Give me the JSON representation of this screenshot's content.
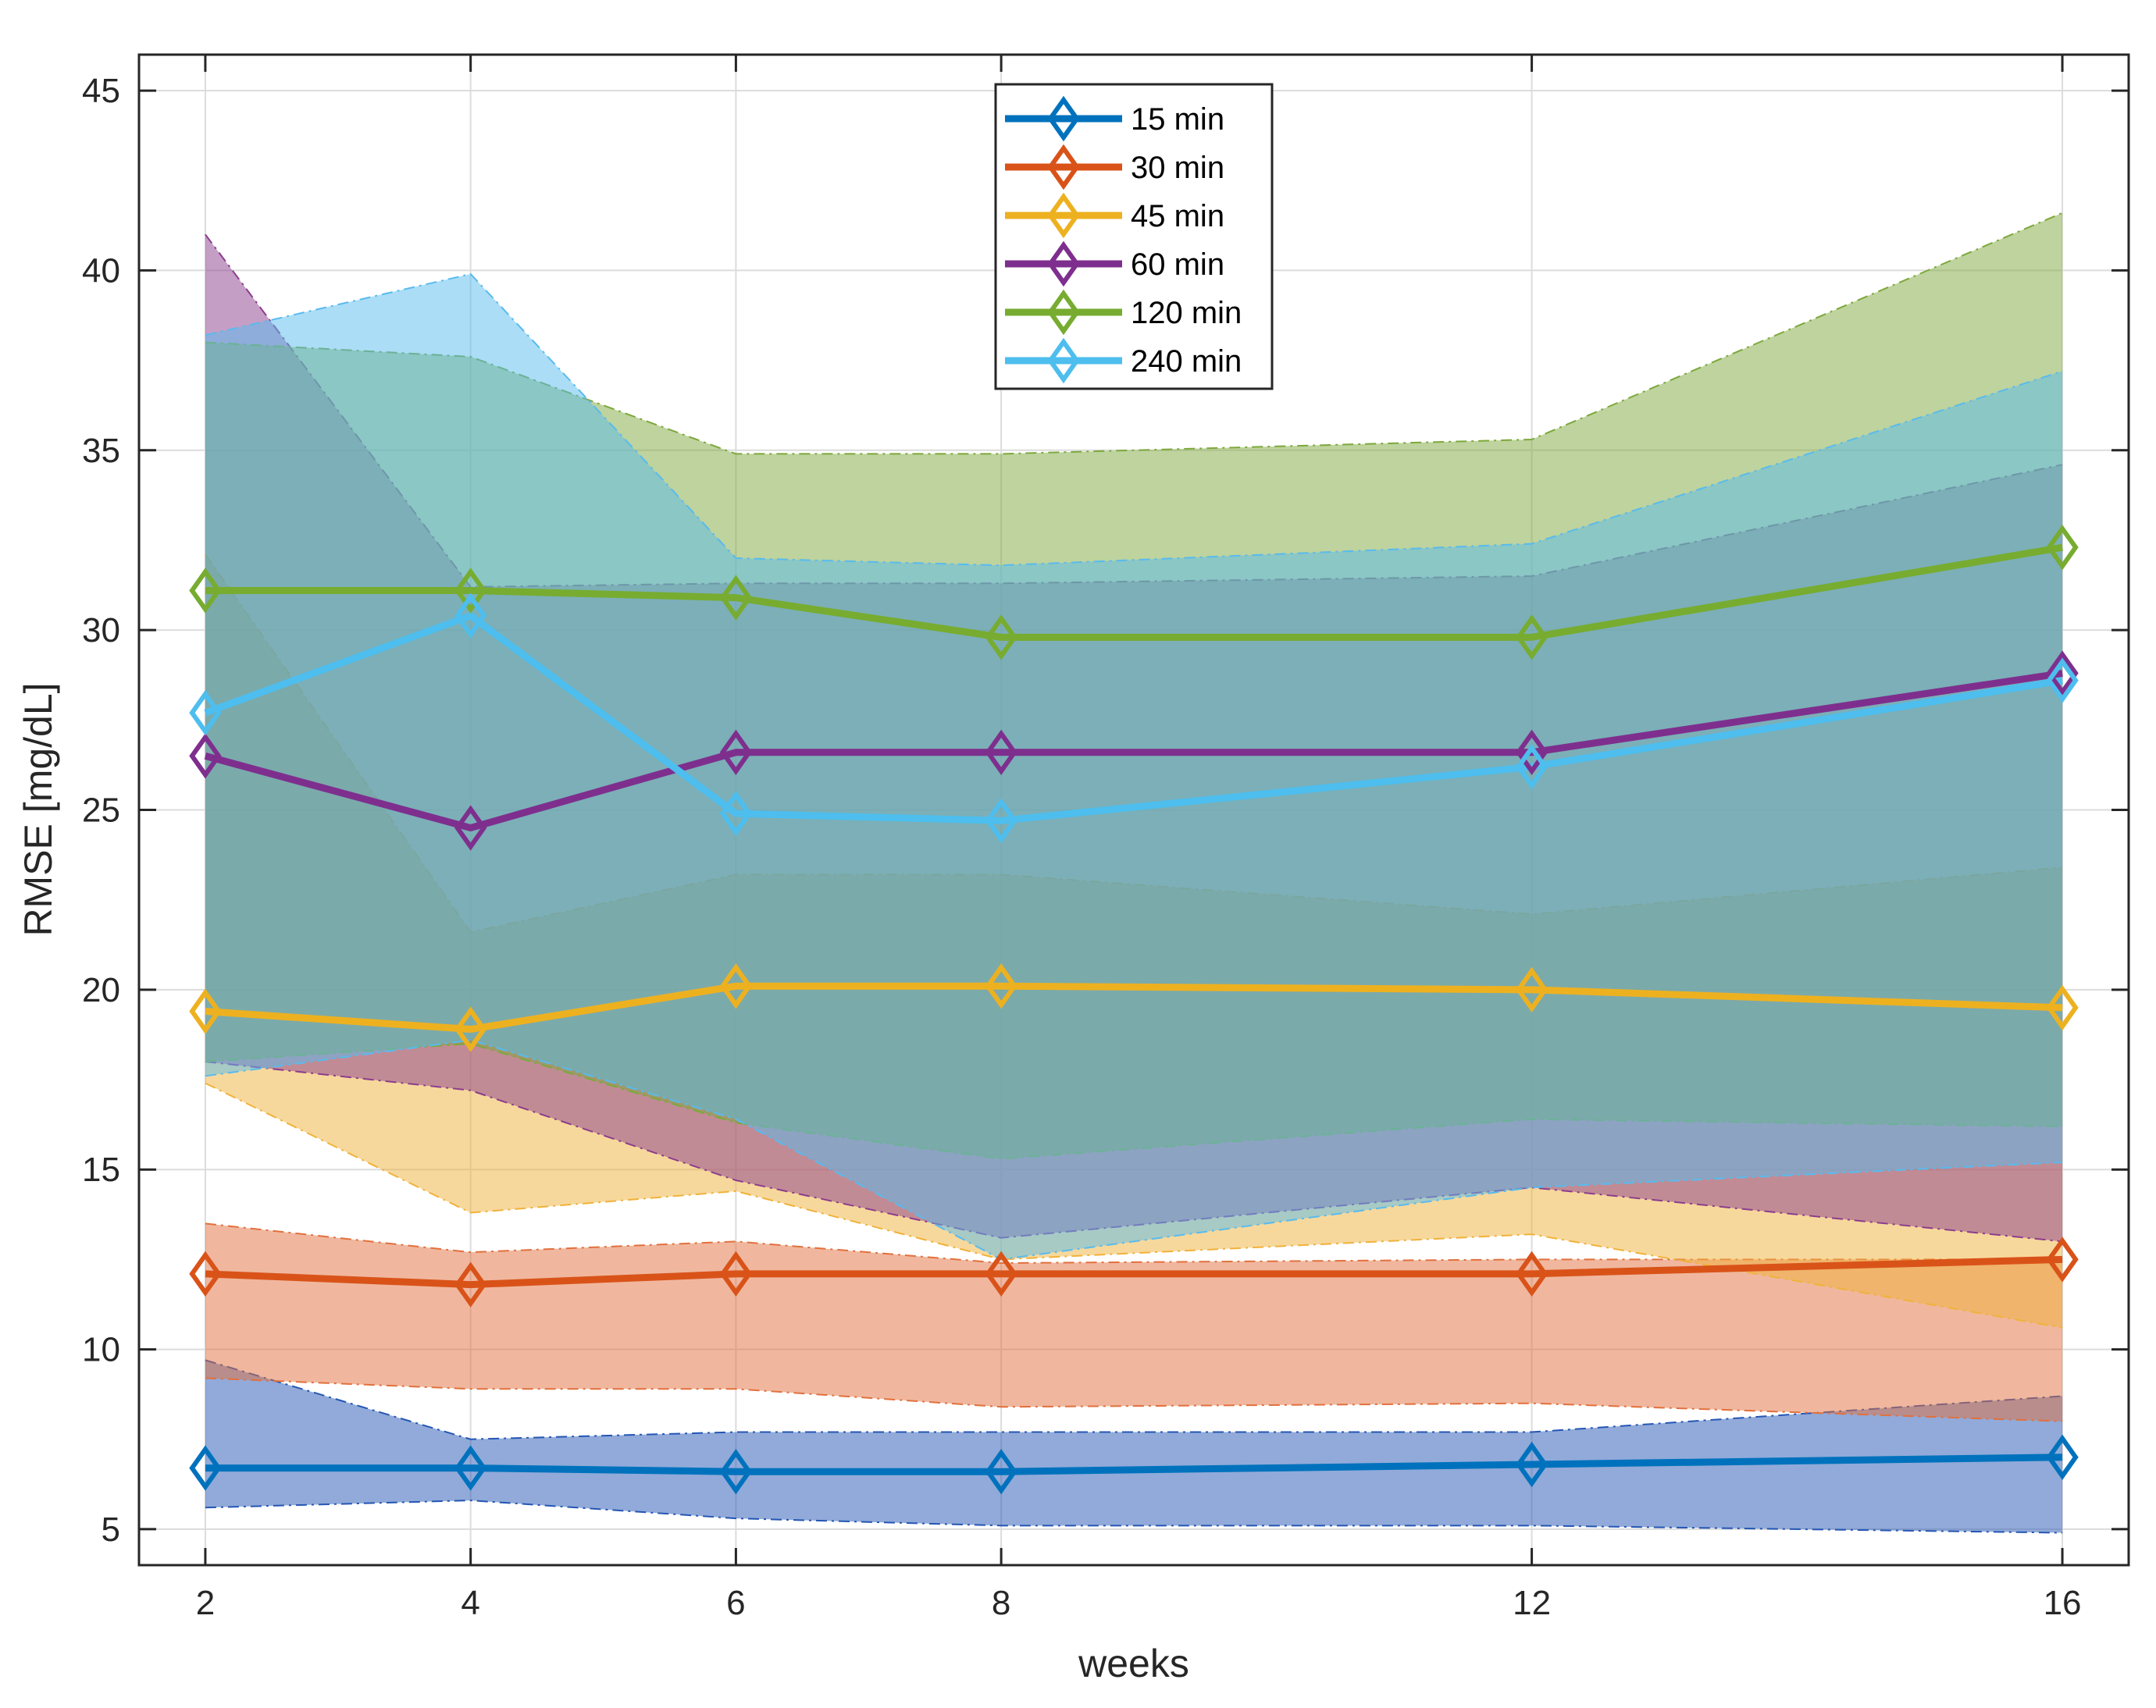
{
  "chart_data": {
    "type": "line",
    "title": "",
    "xlabel": "weeks",
    "ylabel": "RMSE [mg/dL]",
    "x": [
      2,
      4,
      6,
      8,
      12,
      16
    ],
    "xlim": [
      1.5,
      16.5
    ],
    "ylim": [
      4,
      46
    ],
    "x_ticks": [
      2,
      4,
      6,
      8,
      12,
      16
    ],
    "y_ticks": [
      5,
      10,
      15,
      20,
      25,
      30,
      35,
      40,
      45
    ],
    "grid": true,
    "legend_position": "top-center",
    "series": [
      {
        "name": "15 min",
        "color": "#0072BD",
        "band_color": "#2456B4",
        "values": [
          6.7,
          6.7,
          6.6,
          6.6,
          6.8,
          7.0
        ],
        "lower": [
          5.6,
          5.8,
          5.3,
          5.1,
          5.1,
          4.9
        ],
        "upper": [
          9.7,
          7.5,
          7.7,
          7.7,
          7.7,
          8.7
        ]
      },
      {
        "name": "30 min",
        "color": "#D95319",
        "band_color": "#E2703D",
        "values": [
          12.1,
          11.8,
          12.1,
          12.1,
          12.1,
          12.5
        ],
        "lower": [
          9.2,
          8.9,
          8.9,
          8.4,
          8.5,
          8.0
        ],
        "upper": [
          13.5,
          12.7,
          13.0,
          12.4,
          12.5,
          12.5
        ]
      },
      {
        "name": "45 min",
        "color": "#EDB120",
        "band_color": "#F0B23A",
        "values": [
          19.4,
          18.9,
          20.1,
          20.1,
          20.0,
          19.5
        ],
        "lower": [
          17.4,
          13.8,
          14.4,
          12.5,
          13.2,
          10.6
        ],
        "upper": [
          32.1,
          21.6,
          23.2,
          23.2,
          22.1,
          23.4
        ]
      },
      {
        "name": "60 min",
        "color": "#7E2F8E",
        "band_color": "#8C3D8E",
        "values": [
          26.5,
          24.5,
          26.6,
          26.6,
          26.6,
          28.8
        ],
        "lower": [
          18.0,
          17.2,
          14.7,
          13.1,
          14.5,
          13.0
        ],
        "upper": [
          41.0,
          31.2,
          31.3,
          31.3,
          31.5,
          34.6
        ]
      },
      {
        "name": "120 min",
        "color": "#77AC30",
        "band_color": "#7DA83C",
        "values": [
          31.1,
          31.1,
          30.9,
          29.8,
          29.8,
          32.3
        ],
        "lower": [
          18.0,
          18.5,
          16.3,
          15.3,
          16.4,
          16.2
        ],
        "upper": [
          38.0,
          37.6,
          34.9,
          34.9,
          35.3,
          41.6
        ]
      },
      {
        "name": "240 min",
        "color": "#4DBEEE",
        "band_color": "#58BBEE",
        "values": [
          27.7,
          30.4,
          24.9,
          24.7,
          26.2,
          28.6
        ],
        "lower": [
          17.6,
          18.6,
          16.4,
          12.5,
          14.5,
          15.2
        ],
        "upper": [
          38.2,
          39.9,
          32.0,
          31.8,
          32.4,
          37.2
        ]
      }
    ]
  }
}
